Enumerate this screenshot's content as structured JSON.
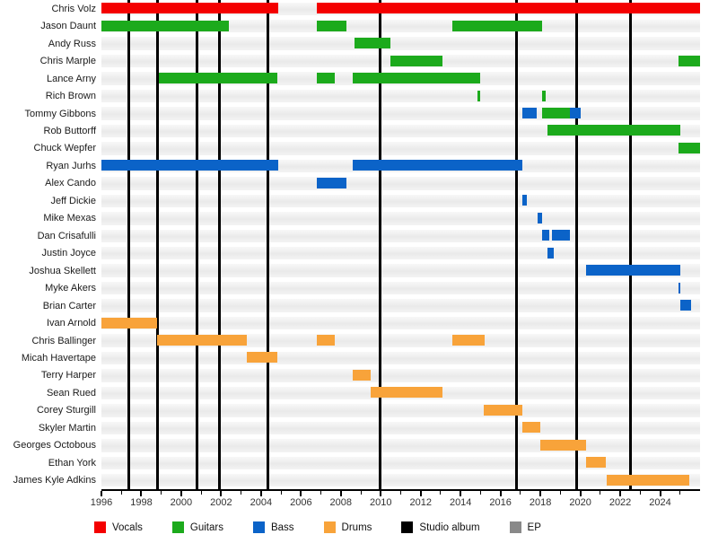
{
  "legend": {
    "items": [
      {
        "label": "Vocals",
        "color": "#f40000"
      },
      {
        "label": "Guitars",
        "color": "#1caa1c"
      },
      {
        "label": "Bass",
        "color": "#0b63c8"
      },
      {
        "label": "Drums",
        "color": "#f8a33a"
      },
      {
        "label": "Studio album",
        "color": "#000000"
      },
      {
        "label": "EP",
        "color": "#898989"
      }
    ]
  },
  "chart_data": {
    "type": "gantt",
    "title": "",
    "x_axis": {
      "start": 1996,
      "end": 2026,
      "major_tick_interval": 2,
      "minor_tick_interval": 1,
      "tick_labels": [
        "1996",
        "1998",
        "2000",
        "2002",
        "2004",
        "2006",
        "2008",
        "2010",
        "2012",
        "2014",
        "2016",
        "2018",
        "2020",
        "2022",
        "2024"
      ]
    },
    "role_colors": {
      "vocals": "#f40000",
      "guitars": "#1caa1c",
      "bass": "#0b63c8",
      "drums": "#f8a33a"
    },
    "members": [
      {
        "name": "Chris Volz",
        "segments": [
          {
            "role": "vocals",
            "start": 1996,
            "end": 2004.85
          },
          {
            "role": "vocals",
            "start": 2006.8,
            "end": 2026
          }
        ]
      },
      {
        "name": "Jason Daunt",
        "segments": [
          {
            "role": "guitars",
            "start": 1996,
            "end": 2002.4
          },
          {
            "role": "guitars",
            "start": 2006.8,
            "end": 2008.3
          },
          {
            "role": "guitars",
            "start": 2013.6,
            "end": 2018.1
          }
        ]
      },
      {
        "name": "Andy Russ",
        "segments": [
          {
            "role": "guitars",
            "start": 2008.7,
            "end": 2010.5
          }
        ]
      },
      {
        "name": "Chris Marple",
        "segments": [
          {
            "role": "guitars",
            "start": 2010.5,
            "end": 2013.1
          },
          {
            "role": "guitars",
            "start": 2024.9,
            "end": 2026
          }
        ]
      },
      {
        "name": "Lance Arny",
        "segments": [
          {
            "role": "guitars",
            "start": 1998.9,
            "end": 2004.8
          },
          {
            "role": "guitars",
            "start": 2006.8,
            "end": 2007.7
          },
          {
            "role": "guitars",
            "start": 2008.6,
            "end": 2015.0
          }
        ]
      },
      {
        "name": "Rich Brown",
        "segments": [
          {
            "role": "guitars",
            "start": 2014.85,
            "end": 2015.0
          },
          {
            "role": "guitars",
            "start": 2018.1,
            "end": 2018.25
          }
        ]
      },
      {
        "name": "Tommy Gibbons",
        "segments": [
          {
            "role": "bass",
            "start": 2017.1,
            "end": 2017.8
          },
          {
            "role": "guitars",
            "start": 2018.1,
            "end": 2019.5
          },
          {
            "role": "bass",
            "start": 2019.5,
            "end": 2020.0
          }
        ]
      },
      {
        "name": "Rob Buttorff",
        "segments": [
          {
            "role": "guitars",
            "start": 2018.35,
            "end": 2025.0
          }
        ]
      },
      {
        "name": "Chuck Wepfer",
        "segments": [
          {
            "role": "guitars",
            "start": 2024.9,
            "end": 2026
          }
        ]
      },
      {
        "name": "Ryan Jurhs",
        "segments": [
          {
            "role": "bass",
            "start": 1996,
            "end": 2004.85
          },
          {
            "role": "bass",
            "start": 2008.6,
            "end": 2017.1
          }
        ]
      },
      {
        "name": "Alex Cando",
        "segments": [
          {
            "role": "bass",
            "start": 2006.8,
            "end": 2008.3
          }
        ]
      },
      {
        "name": "Jeff Dickie",
        "segments": [
          {
            "role": "bass",
            "start": 2017.1,
            "end": 2017.3
          }
        ]
      },
      {
        "name": "Mike Mexas",
        "segments": [
          {
            "role": "bass",
            "start": 2017.85,
            "end": 2018.1
          }
        ]
      },
      {
        "name": "Dan Crisafulli",
        "segments": [
          {
            "role": "bass",
            "start": 2018.1,
            "end": 2018.45
          },
          {
            "role": "bass",
            "start": 2018.6,
            "end": 2019.5
          }
        ]
      },
      {
        "name": "Justin Joyce",
        "segments": [
          {
            "role": "bass",
            "start": 2018.35,
            "end": 2018.65
          }
        ]
      },
      {
        "name": "Joshua Skellett",
        "segments": [
          {
            "role": "bass",
            "start": 2020.3,
            "end": 2025.0
          }
        ]
      },
      {
        "name": "Myke Akers",
        "segments": [
          {
            "role": "bass",
            "start": 2024.9,
            "end": 2025.0
          }
        ]
      },
      {
        "name": "Brian Carter",
        "segments": [
          {
            "role": "bass",
            "start": 2025.0,
            "end": 2025.55
          }
        ]
      },
      {
        "name": "Ivan Arnold",
        "segments": [
          {
            "role": "drums",
            "start": 1996,
            "end": 1998.8
          }
        ]
      },
      {
        "name": "Chris Ballinger",
        "segments": [
          {
            "role": "drums",
            "start": 1998.8,
            "end": 2003.3
          },
          {
            "role": "drums",
            "start": 2006.8,
            "end": 2007.7
          },
          {
            "role": "drums",
            "start": 2013.6,
            "end": 2015.2
          }
        ]
      },
      {
        "name": "Micah Havertape",
        "segments": [
          {
            "role": "drums",
            "start": 2003.3,
            "end": 2004.8
          }
        ]
      },
      {
        "name": "Terry Harper",
        "segments": [
          {
            "role": "drums",
            "start": 2008.6,
            "end": 2009.5
          }
        ]
      },
      {
        "name": "Sean Rued",
        "segments": [
          {
            "role": "drums",
            "start": 2009.5,
            "end": 2013.1
          }
        ]
      },
      {
        "name": "Corey Sturgill",
        "segments": [
          {
            "role": "drums",
            "start": 2015.15,
            "end": 2017.1
          }
        ]
      },
      {
        "name": "Skyler Martin",
        "segments": [
          {
            "role": "drums",
            "start": 2017.1,
            "end": 2018.0
          }
        ]
      },
      {
        "name": "Georges Octobous",
        "segments": [
          {
            "role": "drums",
            "start": 2018.0,
            "end": 2020.3
          }
        ]
      },
      {
        "name": "Ethan York",
        "segments": [
          {
            "role": "drums",
            "start": 2020.3,
            "end": 2021.3
          }
        ]
      },
      {
        "name": "James Kyle Adkins",
        "segments": [
          {
            "role": "drums",
            "start": 2021.3,
            "end": 2025.45
          }
        ]
      }
    ],
    "album_lines": {
      "label": "Studio album",
      "color": "#000000",
      "years": [
        1997.35,
        1998.8,
        2000.8,
        2001.9,
        2004.35,
        2009.95,
        2016.8,
        2019.8,
        2022.5
      ]
    },
    "ep_lines": {
      "label": "EP",
      "color": "#898989",
      "years": []
    }
  }
}
